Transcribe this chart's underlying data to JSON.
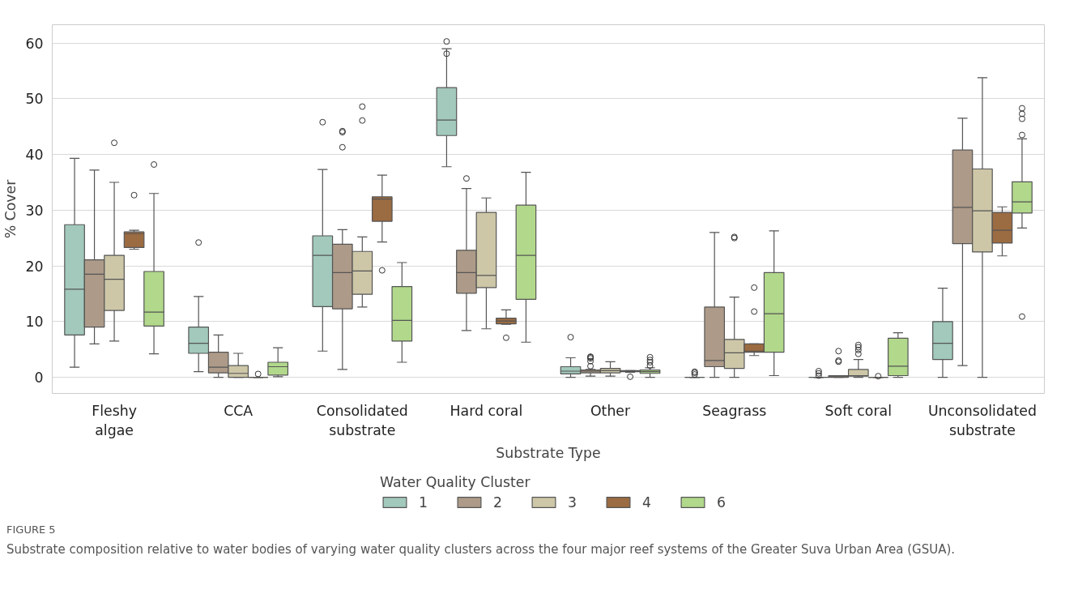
{
  "chart_data": {
    "type": "box",
    "xlabel": "Substrate Type",
    "ylabel": "% Cover",
    "legend_title": "Water Quality Cluster",
    "legend": "bottom",
    "grid": "y",
    "categories": [
      "Fleshy\nalgae",
      "CCA",
      "Consolidated\nsubstrate",
      "Hard coral",
      "Other",
      "Seagrass",
      "Soft coral",
      "Unconsolidated\nsubstrate"
    ],
    "ylim": [
      -2.9,
      63.3
    ],
    "yticks": [
      0,
      10,
      20,
      30,
      40,
      50,
      60
    ],
    "series": [
      {
        "name": "1",
        "color": "#a2c9bb",
        "boxes": [
          {
            "low": 1.8,
            "q1": 7.6,
            "median": 15.8,
            "q3": 27.4,
            "high": 39.3
          },
          {
            "low": 1,
            "q1": 4.3,
            "median": 6.1,
            "q3": 9,
            "high": 14.5,
            "outliers": [
              24.2
            ]
          },
          {
            "low": 4.7,
            "q1": 12.7,
            "median": 21.9,
            "q3": 25.4,
            "high": 37.3,
            "outliers": [
              45.8
            ]
          },
          {
            "low": 37.8,
            "q1": 43.4,
            "median": 46.2,
            "q3": 52,
            "high": 59,
            "outliers": [
              58.1,
              60.3
            ]
          },
          {
            "low": 0,
            "q1": 0.6,
            "median": 1.1,
            "q3": 1.9,
            "high": 3.5,
            "outliers": [
              7.2
            ]
          },
          {
            "low": 0,
            "q1": 0,
            "median": 0,
            "q3": 0,
            "high": 0,
            "outliers": [
              0.5,
              0.8,
              1.0
            ]
          },
          {
            "low": 0,
            "q1": 0,
            "median": 0,
            "q3": 0,
            "high": 0,
            "outliers": [
              0.3,
              0.7,
              1.1
            ]
          },
          {
            "low": 0,
            "q1": 3.2,
            "median": 6.1,
            "q3": 10,
            "high": 16
          }
        ]
      },
      {
        "name": "2",
        "color": "#ad9a88",
        "boxes": [
          {
            "low": 6,
            "q1": 9,
            "median": 18.5,
            "q3": 21.1,
            "high": 37.2
          },
          {
            "low": 0,
            "q1": 0.8,
            "median": 1.8,
            "q3": 4.5,
            "high": 7.6
          },
          {
            "low": 1.4,
            "q1": 12.3,
            "median": 18.8,
            "q3": 23.9,
            "high": 26.5,
            "outliers": [
              41.3,
              44,
              44.2
            ]
          },
          {
            "low": 8.4,
            "q1": 15.1,
            "median": 18.8,
            "q3": 22.8,
            "high": 33.9,
            "outliers": [
              35.7
            ]
          },
          {
            "low": 0.2,
            "q1": 0.8,
            "median": 1.1,
            "q3": 1.3,
            "high": 1.4,
            "outliers": [
              2,
              2.9,
              3.4,
              3.6,
              3.7
            ]
          },
          {
            "low": 0,
            "q1": 1.9,
            "median": 3,
            "q3": 12.6,
            "high": 26
          },
          {
            "low": 0,
            "q1": 0,
            "median": 0.1,
            "q3": 0.3,
            "high": 0.3,
            "outliers": [
              2.8,
              3,
              4.7
            ]
          },
          {
            "low": 2.1,
            "q1": 24,
            "median": 30.5,
            "q3": 40.8,
            "high": 46.5
          }
        ]
      },
      {
        "name": "3",
        "color": "#cdc7a8",
        "boxes": [
          {
            "low": 6.5,
            "q1": 12,
            "median": 17.6,
            "q3": 21.9,
            "high": 35,
            "outliers": [
              42.1
            ]
          },
          {
            "low": 0,
            "q1": 0,
            "median": 0.7,
            "q3": 2.1,
            "high": 4.3
          },
          {
            "low": 12.6,
            "q1": 14.9,
            "median": 19.1,
            "q3": 22.6,
            "high": 25.2,
            "outliers": [
              46.1,
              48.6
            ]
          },
          {
            "low": 8.7,
            "q1": 16.1,
            "median": 18.3,
            "q3": 29.6,
            "high": 32.2
          },
          {
            "low": 0.2,
            "q1": 0.8,
            "median": 1.2,
            "q3": 1.6,
            "high": 2.8
          },
          {
            "low": 0,
            "q1": 1.6,
            "median": 4.4,
            "q3": 6.8,
            "high": 14.4,
            "outliers": [
              25,
              25.2
            ]
          },
          {
            "low": 0,
            "q1": 0.2,
            "median": 0.3,
            "q3": 1.4,
            "high": 3.2,
            "outliers": [
              4.2,
              4.9,
              5.4,
              5.8
            ]
          },
          {
            "low": 0,
            "q1": 22.5,
            "median": 29.9,
            "q3": 37.4,
            "high": 53.8
          }
        ]
      },
      {
        "name": "4",
        "color": "#9b6b41",
        "boxes": [
          {
            "low": 23,
            "q1": 23.3,
            "median": 25.8,
            "q3": 26.1,
            "high": 26.4,
            "outliers": [
              32.7
            ]
          },
          {
            "low": 0,
            "q1": 0,
            "median": 0,
            "q3": 0,
            "high": 0,
            "outliers": [
              0.6
            ]
          },
          {
            "low": 24.3,
            "q1": 28,
            "median": 32,
            "q3": 32.4,
            "high": 36.3,
            "outliers": [
              19.2
            ]
          },
          {
            "low": 9.5,
            "q1": 9.6,
            "median": 10.1,
            "q3": 10.6,
            "high": 12.1,
            "outliers": [
              7.1
            ]
          },
          {
            "low": 0.9,
            "q1": 1,
            "median": 1.1,
            "q3": 1.2,
            "high": 1.2,
            "outliers": [
              0.1
            ]
          },
          {
            "low": 3.9,
            "q1": 4.5,
            "median": 4.7,
            "q3": 6,
            "high": 6,
            "outliers": [
              11.8,
              16.1
            ]
          },
          {
            "low": 0,
            "q1": 0,
            "median": 0,
            "q3": 0,
            "high": 0,
            "outliers": [
              0.2
            ]
          },
          {
            "low": 21.8,
            "q1": 24.1,
            "median": 26.4,
            "q3": 29.6,
            "high": 30.6
          }
        ]
      },
      {
        "name": "6",
        "color": "#b1d88b",
        "boxes": [
          {
            "low": 4.2,
            "q1": 9.2,
            "median": 11.7,
            "q3": 19,
            "high": 33,
            "outliers": [
              38.2
            ]
          },
          {
            "low": 0.1,
            "q1": 0.4,
            "median": 1.9,
            "q3": 2.7,
            "high": 5.3
          },
          {
            "low": 2.7,
            "q1": 6.5,
            "median": 10.2,
            "q3": 16.3,
            "high": 20.6
          },
          {
            "low": 6.3,
            "q1": 14,
            "median": 21.9,
            "q3": 30.9,
            "high": 36.8
          },
          {
            "low": 0,
            "q1": 0.7,
            "median": 1,
            "q3": 1.3,
            "high": 1.7,
            "outliers": [
              2.1,
              2.7,
              3.1,
              3.6
            ]
          },
          {
            "low": 0.3,
            "q1": 4.5,
            "median": 11.4,
            "q3": 18.8,
            "high": 26.3
          },
          {
            "low": 0,
            "q1": 0.3,
            "median": 2,
            "q3": 7,
            "high": 8
          },
          {
            "low": 26.8,
            "q1": 29.5,
            "median": 31.5,
            "q3": 35.1,
            "high": 42.8,
            "outliers": [
              10.9,
              43.5,
              46.4,
              47.3,
              48.3
            ]
          }
        ]
      }
    ],
    "annotations": [
      "FIGURE 5",
      "Substrate composition relative to water bodies of varying water quality clusters across the four major reef systems of the Greater Suva Urban Area (GSUA)."
    ]
  }
}
